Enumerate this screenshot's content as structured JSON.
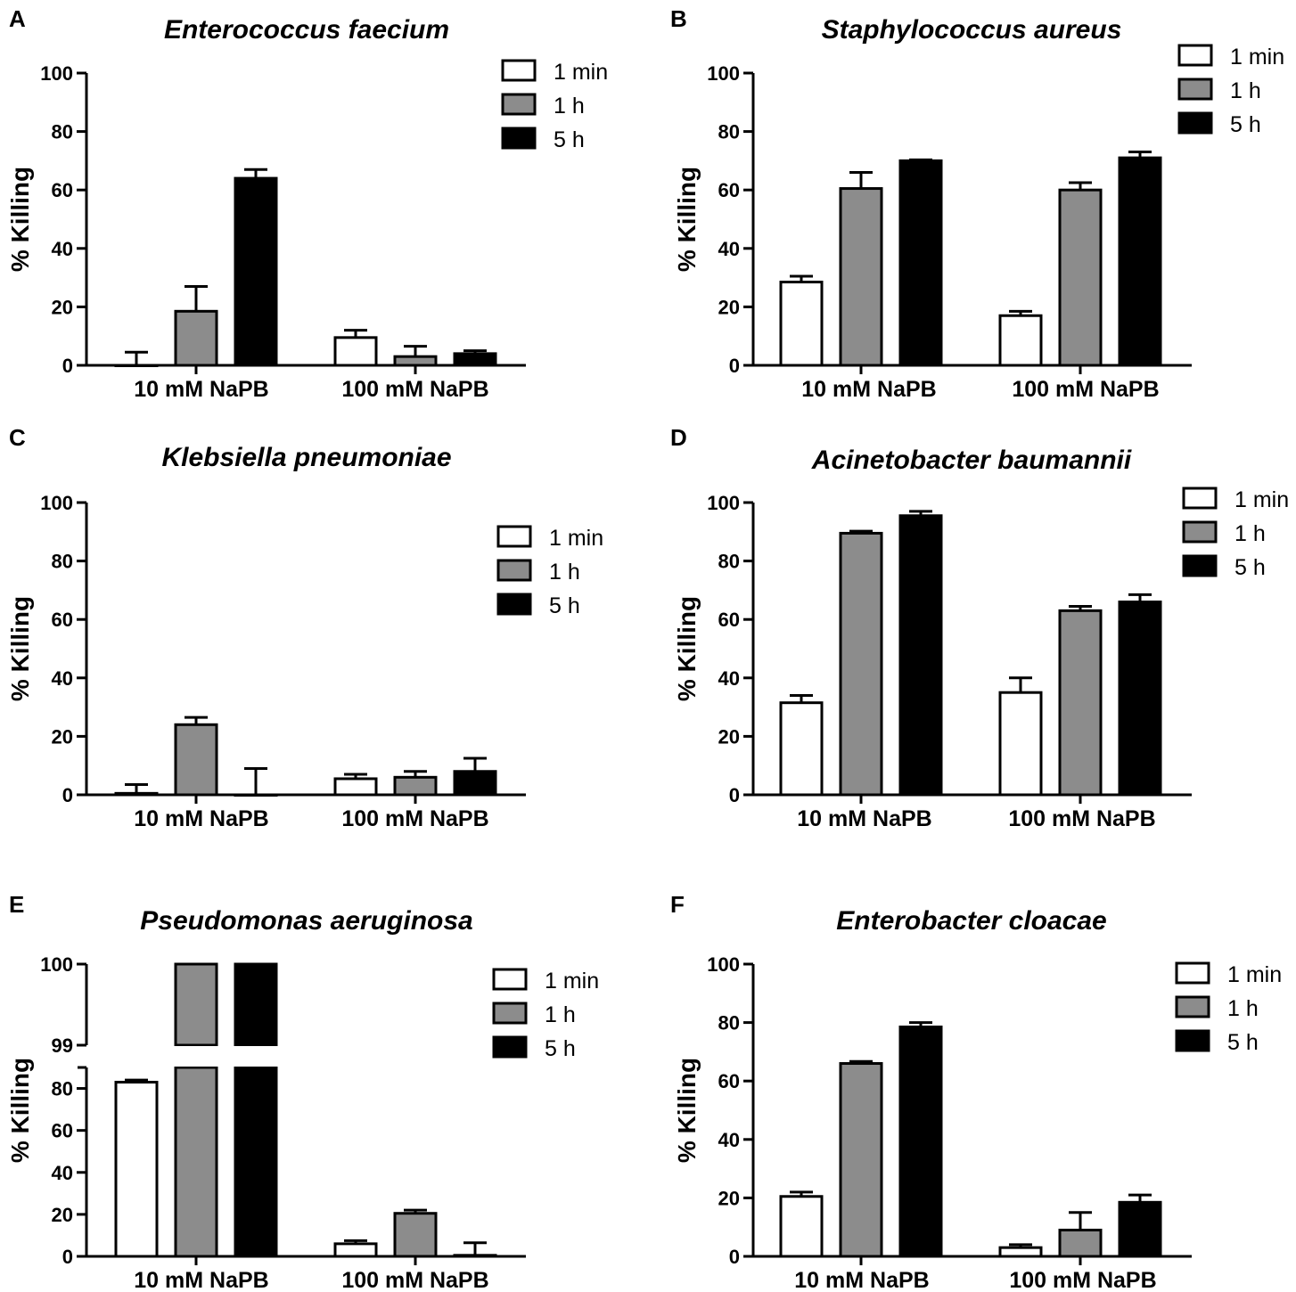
{
  "figure": {
    "colors": {
      "1 min": "#ffffff",
      "1 h": "#8c8c8c",
      "5 h": "#000000",
      "stroke": "#000000"
    }
  },
  "chart_data": [
    {
      "panel": "A",
      "type": "bar",
      "title": "Enterococcus faecium",
      "categories": [
        "10 mM NaPB",
        "100 mM NaPB"
      ],
      "ylabel": "% Killing",
      "ylim": [
        0,
        100
      ],
      "yticks": [
        0,
        20,
        40,
        60,
        80,
        100
      ],
      "legend": [
        "1 min",
        "1 h",
        "5 h"
      ],
      "legend_position": "top-right",
      "series": [
        {
          "name": "1 min",
          "values": [
            0,
            9.5
          ],
          "errors": [
            4.5,
            2.5
          ]
        },
        {
          "name": "1 h",
          "values": [
            18.5,
            3
          ],
          "errors": [
            8.5,
            3.5
          ]
        },
        {
          "name": "5 h",
          "values": [
            64,
            4
          ],
          "errors": [
            3,
            1
          ]
        }
      ]
    },
    {
      "panel": "B",
      "type": "bar",
      "title": "Staphylococcus aureus",
      "categories": [
        "10 mM NaPB",
        "100 mM NaPB"
      ],
      "ylabel": "% Killing",
      "ylim": [
        0,
        100
      ],
      "yticks": [
        0,
        20,
        40,
        60,
        80,
        100
      ],
      "legend": [
        "1 min",
        "1 h",
        "5 h"
      ],
      "legend_position": "top-right",
      "series": [
        {
          "name": "1 min",
          "values": [
            28.5,
            17
          ],
          "errors": [
            2,
            1.5
          ]
        },
        {
          "name": "1 h",
          "values": [
            60.5,
            60
          ],
          "errors": [
            5.5,
            2.5
          ]
        },
        {
          "name": "5 h",
          "values": [
            70,
            71
          ],
          "errors": [
            0.3,
            2
          ]
        }
      ]
    },
    {
      "panel": "C",
      "type": "bar",
      "title": "Klebsiella pneumoniae",
      "categories": [
        "10 mM NaPB",
        "100 mM NaPB"
      ],
      "ylabel": "% Killing",
      "ylim": [
        0,
        100
      ],
      "yticks": [
        0,
        20,
        40,
        60,
        80,
        100
      ],
      "legend": [
        "1 min",
        "1 h",
        "5 h"
      ],
      "legend_position": "top-right",
      "series": [
        {
          "name": "1 min",
          "values": [
            0.5,
            5.5
          ],
          "errors": [
            3,
            1.5
          ]
        },
        {
          "name": "1 h",
          "values": [
            24,
            6
          ],
          "errors": [
            2.5,
            2
          ]
        },
        {
          "name": "5 h",
          "values": [
            0,
            8
          ],
          "errors": [
            9,
            4.5
          ]
        }
      ]
    },
    {
      "panel": "D",
      "type": "bar",
      "title": "Acinetobacter baumannii",
      "categories": [
        "10 mM NaPB",
        "100 mM NaPB"
      ],
      "ylabel": "% Killing",
      "ylim": [
        0,
        100
      ],
      "yticks": [
        0,
        20,
        40,
        60,
        80,
        100
      ],
      "legend": [
        "1 min",
        "1 h",
        "5 h"
      ],
      "legend_position": "top-right",
      "series": [
        {
          "name": "1 min",
          "values": [
            31.5,
            35
          ],
          "errors": [
            2.5,
            5
          ]
        },
        {
          "name": "1 h",
          "values": [
            89.5,
            63
          ],
          "errors": [
            0.7,
            1.5
          ]
        },
        {
          "name": "5 h",
          "values": [
            95.5,
            66
          ],
          "errors": [
            1.5,
            2.5
          ]
        }
      ]
    },
    {
      "panel": "E",
      "type": "bar",
      "title": "Pseudomonas aeruginosa",
      "categories": [
        "10 mM NaPB",
        "100 mM NaPB"
      ],
      "ylabel": "% Killing",
      "ylim": [
        0,
        100
      ],
      "yticks": [
        0,
        20,
        40,
        60,
        80,
        99,
        100
      ],
      "axis_break": {
        "lower": [
          0,
          90
        ],
        "upper": [
          99,
          100
        ]
      },
      "legend": [
        "1 min",
        "1 h",
        "5 h"
      ],
      "legend_position": "top-right",
      "series": [
        {
          "name": "1 min",
          "values": [
            83,
            6
          ],
          "errors": [
            1,
            1.5
          ]
        },
        {
          "name": "1 h",
          "values": [
            100,
            20.5
          ],
          "errors": [
            0,
            1.5
          ]
        },
        {
          "name": "5 h",
          "values": [
            100,
            0.5
          ],
          "errors": [
            0,
            6
          ]
        }
      ]
    },
    {
      "panel": "F",
      "type": "bar",
      "title": "Enterobacter cloacae",
      "categories": [
        "10 mM NaPB",
        "100 mM NaPB"
      ],
      "ylabel": "% Killing",
      "ylim": [
        0,
        100
      ],
      "yticks": [
        0,
        20,
        40,
        60,
        80,
        100
      ],
      "legend": [
        "1 min",
        "1 h",
        "5 h"
      ],
      "legend_position": "top-right",
      "series": [
        {
          "name": "1 min",
          "values": [
            20.5,
            3
          ],
          "errors": [
            1.5,
            1
          ]
        },
        {
          "name": "1 h",
          "values": [
            66,
            9
          ],
          "errors": [
            0.7,
            6
          ]
        },
        {
          "name": "5 h",
          "values": [
            78.5,
            18.5
          ],
          "errors": [
            1.5,
            2.5
          ]
        }
      ]
    }
  ]
}
